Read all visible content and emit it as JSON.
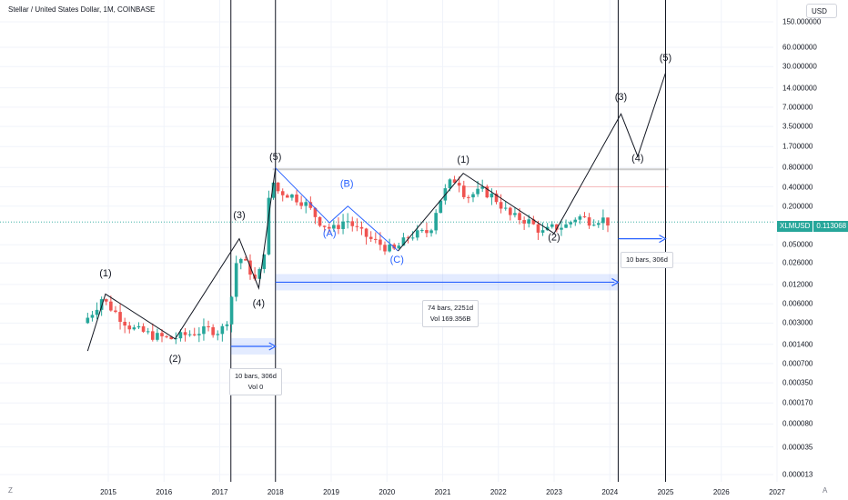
{
  "header": {
    "title": "Stellar / United States Dollar, 1M, COINBASE",
    "currency": "USD"
  },
  "price_tag": {
    "symbol": "XLMUSD",
    "value": "0.113068"
  },
  "axis_corner": {
    "left": "Z",
    "right": "A"
  },
  "measurements": [
    {
      "line1": "10 bars, 306d",
      "line2": "Vol 0"
    },
    {
      "line1": "74 bars, 2251d",
      "line2": "Vol 169.356B"
    },
    {
      "line1": "10 bars, 306d",
      "line2": ""
    }
  ],
  "colors": {
    "up": "#26a69a",
    "down": "#ef5350",
    "wave_labels_blue": "#2962ff",
    "measure_blue": "#2962ff"
  },
  "chart_data": {
    "type": "candlestick",
    "scale": "log",
    "ylim": [
      1.3e-05,
      150
    ],
    "y_ticks": [
      "150.000000",
      "60.000000",
      "30.000000",
      "14.000000",
      "7.000000",
      "3.500000",
      "1.700000",
      "0.800000",
      "0.400000",
      "0.200000",
      "0.050000",
      "0.026000",
      "0.012000",
      "0.006000",
      "0.003000",
      "0.001400",
      "0.000700",
      "0.000350",
      "0.000170",
      "0.000080",
      "0.000035",
      "0.000013"
    ],
    "x_ticks": [
      "2015",
      "2016",
      "2017",
      "2018",
      "2019",
      "2020",
      "2021",
      "2022",
      "2023",
      "2024",
      "2025",
      "2026",
      "2027"
    ],
    "last_price": 0.113068,
    "wave_labels": [
      {
        "text": "(1)",
        "t": 2014.95,
        "v": 0.016,
        "color": "black"
      },
      {
        "text": "(2)",
        "t": 2016.2,
        "v": 0.00075,
        "color": "black"
      },
      {
        "text": "(3)",
        "t": 2017.35,
        "v": 0.13,
        "color": "black"
      },
      {
        "text": "(4)",
        "t": 2017.7,
        "v": 0.0055,
        "color": "black"
      },
      {
        "text": "(5)",
        "t": 2018.0,
        "v": 1.05,
        "color": "black"
      },
      {
        "text": "(A)",
        "t": 2018.97,
        "v": 0.068,
        "color": "blue"
      },
      {
        "text": "(B)",
        "t": 2019.28,
        "v": 0.4,
        "color": "blue"
      },
      {
        "text": "(C)",
        "t": 2020.18,
        "v": 0.026,
        "color": "blue"
      },
      {
        "text": "(1)",
        "t": 2021.37,
        "v": 0.95,
        "color": "black"
      },
      {
        "text": "(2)",
        "t": 2023.0,
        "v": 0.058,
        "color": "black"
      },
      {
        "text": "(3)",
        "t": 2024.2,
        "v": 9,
        "color": "black"
      },
      {
        "text": "(4)",
        "t": 2024.5,
        "v": 1.0,
        "color": "black"
      },
      {
        "text": "(5)",
        "t": 2025.0,
        "v": 37,
        "color": "black"
      }
    ]
  }
}
